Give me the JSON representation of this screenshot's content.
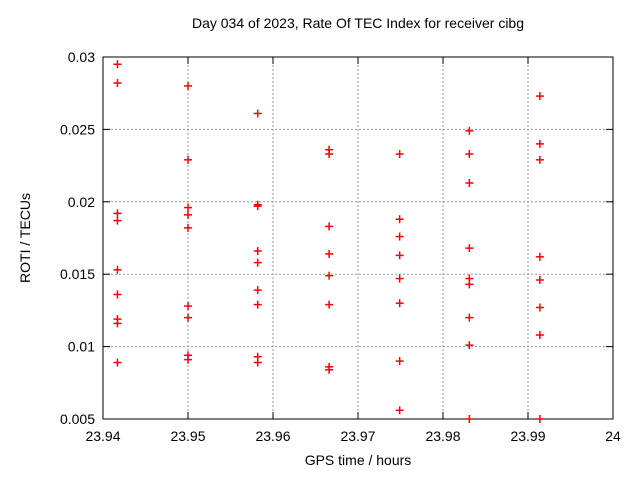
{
  "chart_data": {
    "type": "scatter",
    "title": "Day 034 of 2023, Rate Of TEC Index for receiver cibg",
    "xlabel": "GPS time / hours",
    "ylabel": "ROTI / TECUs",
    "xlim": [
      23.94,
      24
    ],
    "ylim": [
      0.005,
      0.03
    ],
    "xticks": [
      23.94,
      23.95,
      23.96,
      23.97,
      23.98,
      23.99,
      24
    ],
    "xtick_labels": [
      "23.94",
      "23.95",
      "23.96",
      "23.97",
      "23.98",
      "23.99",
      "24"
    ],
    "yticks": [
      0.005,
      0.01,
      0.015,
      0.02,
      0.025,
      0.03
    ],
    "ytick_labels": [
      "0.005",
      "0.01",
      "0.015",
      "0.02",
      "0.025",
      "0.03"
    ],
    "grid": true,
    "legend": "none",
    "marker_shape": "plus",
    "marker_color": "#ff0000",
    "grid_color": "#999999",
    "axis_color": "#000000",
    "series": [
      {
        "name": "ROTI",
        "points": [
          [
            23.9417,
            0.0295
          ],
          [
            23.9417,
            0.0282
          ],
          [
            23.9417,
            0.0192
          ],
          [
            23.9417,
            0.0187
          ],
          [
            23.9417,
            0.0153
          ],
          [
            23.9417,
            0.0136
          ],
          [
            23.9417,
            0.0119
          ],
          [
            23.9417,
            0.0116
          ],
          [
            23.9417,
            0.0089
          ],
          [
            23.95,
            0.028
          ],
          [
            23.95,
            0.0229
          ],
          [
            23.95,
            0.0196
          ],
          [
            23.95,
            0.0191
          ],
          [
            23.95,
            0.0182
          ],
          [
            23.95,
            0.0128
          ],
          [
            23.95,
            0.012
          ],
          [
            23.95,
            0.0094
          ],
          [
            23.95,
            0.0091
          ],
          [
            23.9582,
            0.0261
          ],
          [
            23.9582,
            0.0198
          ],
          [
            23.9582,
            0.0197
          ],
          [
            23.9582,
            0.0166
          ],
          [
            23.9582,
            0.0158
          ],
          [
            23.9582,
            0.0139
          ],
          [
            23.9582,
            0.0129
          ],
          [
            23.9582,
            0.0093
          ],
          [
            23.9582,
            0.0089
          ],
          [
            23.9666,
            0.0236
          ],
          [
            23.9666,
            0.0233
          ],
          [
            23.9666,
            0.0183
          ],
          [
            23.9666,
            0.0164
          ],
          [
            23.9666,
            0.0149
          ],
          [
            23.9666,
            0.0129
          ],
          [
            23.9666,
            0.0086
          ],
          [
            23.9666,
            0.0084
          ],
          [
            23.9749,
            0.0233
          ],
          [
            23.9749,
            0.0188
          ],
          [
            23.9749,
            0.0176
          ],
          [
            23.9749,
            0.0163
          ],
          [
            23.9749,
            0.0147
          ],
          [
            23.9749,
            0.013
          ],
          [
            23.9749,
            0.009
          ],
          [
            23.9749,
            0.0056
          ],
          [
            23.9831,
            0.0249
          ],
          [
            23.9831,
            0.0233
          ],
          [
            23.9831,
            0.0213
          ],
          [
            23.9831,
            0.0168
          ],
          [
            23.9831,
            0.0147
          ],
          [
            23.9831,
            0.0143
          ],
          [
            23.9831,
            0.012
          ],
          [
            23.9831,
            0.0101
          ],
          [
            23.9831,
            0.005
          ],
          [
            23.9914,
            0.0273
          ],
          [
            23.9914,
            0.024
          ],
          [
            23.9914,
            0.0229
          ],
          [
            23.9914,
            0.0162
          ],
          [
            23.9914,
            0.0146
          ],
          [
            23.9914,
            0.0127
          ],
          [
            23.9914,
            0.0108
          ],
          [
            23.9914,
            0.005
          ]
        ]
      }
    ]
  }
}
